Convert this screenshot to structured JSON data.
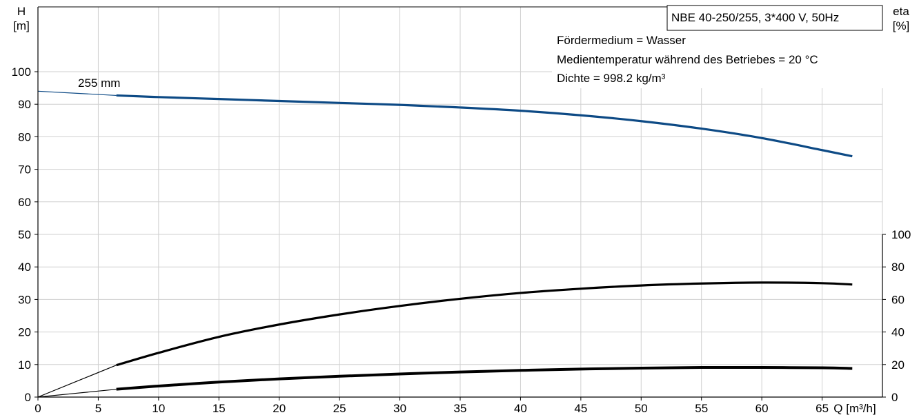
{
  "chart_data": {
    "type": "line",
    "title_box": "NBE 40-250/255, 3*400 V, 50Hz",
    "info_lines": [
      "Fördermedium = Wasser",
      "Medientemperatur während des Betriebes = 20 °C",
      "Dichte = 998.2 kg/m³"
    ],
    "x_axis": {
      "label": "Q [m³/h]",
      "range": [
        0,
        70
      ],
      "ticks": [
        0,
        5,
        10,
        15,
        20,
        25,
        30,
        35,
        40,
        45,
        50,
        55,
        60,
        65
      ]
    },
    "y_left": {
      "label_line1": "H",
      "label_line2": "[m]",
      "range": [
        0,
        100
      ],
      "ticks": [
        0,
        10,
        20,
        30,
        40,
        50,
        60,
        70,
        80,
        90,
        100
      ]
    },
    "y_right": {
      "label_line1": "eta",
      "label_line2": "[%]",
      "range": [
        0,
        100
      ],
      "ticks": [
        0,
        20,
        40,
        60,
        80,
        100
      ]
    },
    "grid": true,
    "curve_label": "255 mm",
    "series": [
      {
        "axis": "left",
        "color": "#0d4a85",
        "operating_range": [
          6.5,
          67.5
        ],
        "x": [
          0,
          6.5,
          10,
          15,
          20,
          25,
          30,
          35,
          40,
          45,
          50,
          55,
          60,
          65,
          67.5
        ],
        "y": [
          94,
          92.7,
          92.2,
          91.6,
          91.0,
          90.4,
          89.8,
          89.0,
          88.0,
          86.6,
          84.8,
          82.5,
          79.6,
          75.9,
          74.0
        ]
      },
      {
        "axis": "right",
        "color": "#000000",
        "operating_range": [
          6.5,
          67.5
        ],
        "x": [
          0,
          6.5,
          10,
          15,
          20,
          25,
          30,
          35,
          40,
          45,
          50,
          55,
          60,
          65,
          67.5
        ],
        "y": [
          0,
          19.6,
          27.2,
          37.0,
          44.6,
          50.8,
          56.0,
          60.4,
          64.0,
          66.6,
          68.6,
          69.8,
          70.4,
          70.0,
          69.2
        ]
      },
      {
        "axis": "left",
        "color": "#000000",
        "operating_range": [
          6.5,
          67.5
        ],
        "x": [
          0,
          6.5,
          10,
          15,
          20,
          25,
          30,
          35,
          40,
          45,
          50,
          55,
          60,
          65,
          67.5
        ],
        "y": [
          0,
          2.4,
          3.4,
          4.6,
          5.6,
          6.4,
          7.1,
          7.7,
          8.2,
          8.6,
          8.9,
          9.1,
          9.1,
          9.0,
          8.8
        ]
      }
    ]
  }
}
